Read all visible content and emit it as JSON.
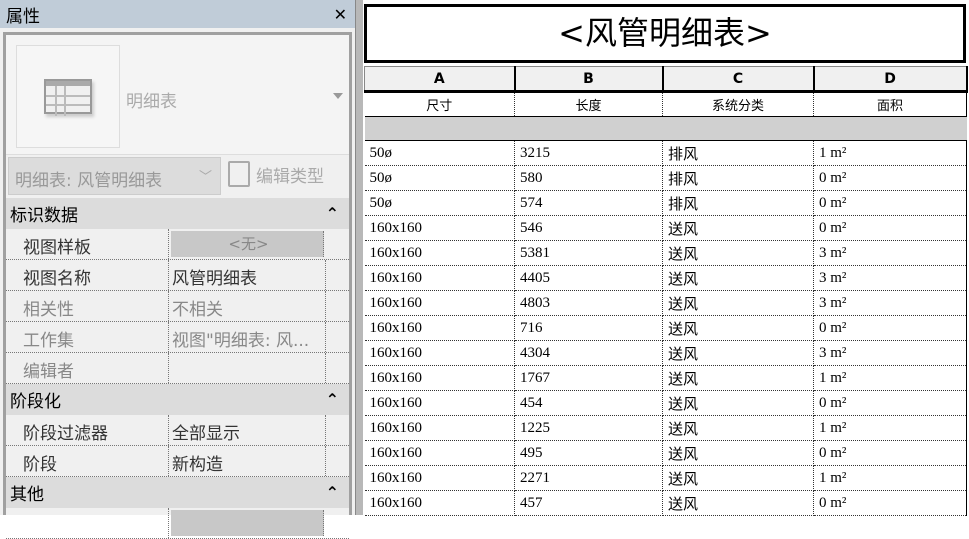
{
  "properties_panel": {
    "title": "属性",
    "close_icon": "close-icon",
    "type_name": "明细表",
    "type_selector": "明细表: 风管明细表",
    "edit_type_label": "编辑类型",
    "sections": [
      {
        "title": "标识数据",
        "rows": [
          {
            "key": "视图样板",
            "value": "<无>",
            "kind": "button"
          },
          {
            "key": "视图名称",
            "value": "风管明细表"
          },
          {
            "key": "相关性",
            "value": "不相关",
            "dim": true
          },
          {
            "key": "工作集",
            "value": "视图\"明细表: 风...",
            "dim": true
          },
          {
            "key": "编辑者",
            "value": "",
            "dim": true
          }
        ]
      },
      {
        "title": "阶段化",
        "rows": [
          {
            "key": "阶段过滤器",
            "value": "全部显示"
          },
          {
            "key": "阶段",
            "value": "新构造"
          }
        ]
      },
      {
        "title": "其他",
        "rows": []
      }
    ]
  },
  "schedule": {
    "title": "<风管明细表>",
    "column_letters": [
      "A",
      "B",
      "C",
      "D"
    ],
    "column_names": [
      "尺寸",
      "长度",
      "系统分类",
      "面积"
    ],
    "rows": [
      [
        "50ø",
        "3215",
        "排风",
        "1 m²"
      ],
      [
        "50ø",
        "580",
        "排风",
        "0 m²"
      ],
      [
        "50ø",
        "574",
        "排风",
        "0 m²"
      ],
      [
        "160x160",
        "546",
        "送风",
        "0 m²"
      ],
      [
        "160x160",
        "5381",
        "送风",
        "3 m²"
      ],
      [
        "160x160",
        "4405",
        "送风",
        "3 m²"
      ],
      [
        "160x160",
        "4803",
        "送风",
        "3 m²"
      ],
      [
        "160x160",
        "716",
        "送风",
        "0 m²"
      ],
      [
        "160x160",
        "4304",
        "送风",
        "3 m²"
      ],
      [
        "160x160",
        "1767",
        "送风",
        "1 m²"
      ],
      [
        "160x160",
        "454",
        "送风",
        "0 m²"
      ],
      [
        "160x160",
        "1225",
        "送风",
        "1 m²"
      ],
      [
        "160x160",
        "495",
        "送风",
        "0 m²"
      ],
      [
        "160x160",
        "2271",
        "送风",
        "1 m²"
      ],
      [
        "160x160",
        "457",
        "送风",
        "0 m²"
      ]
    ]
  }
}
